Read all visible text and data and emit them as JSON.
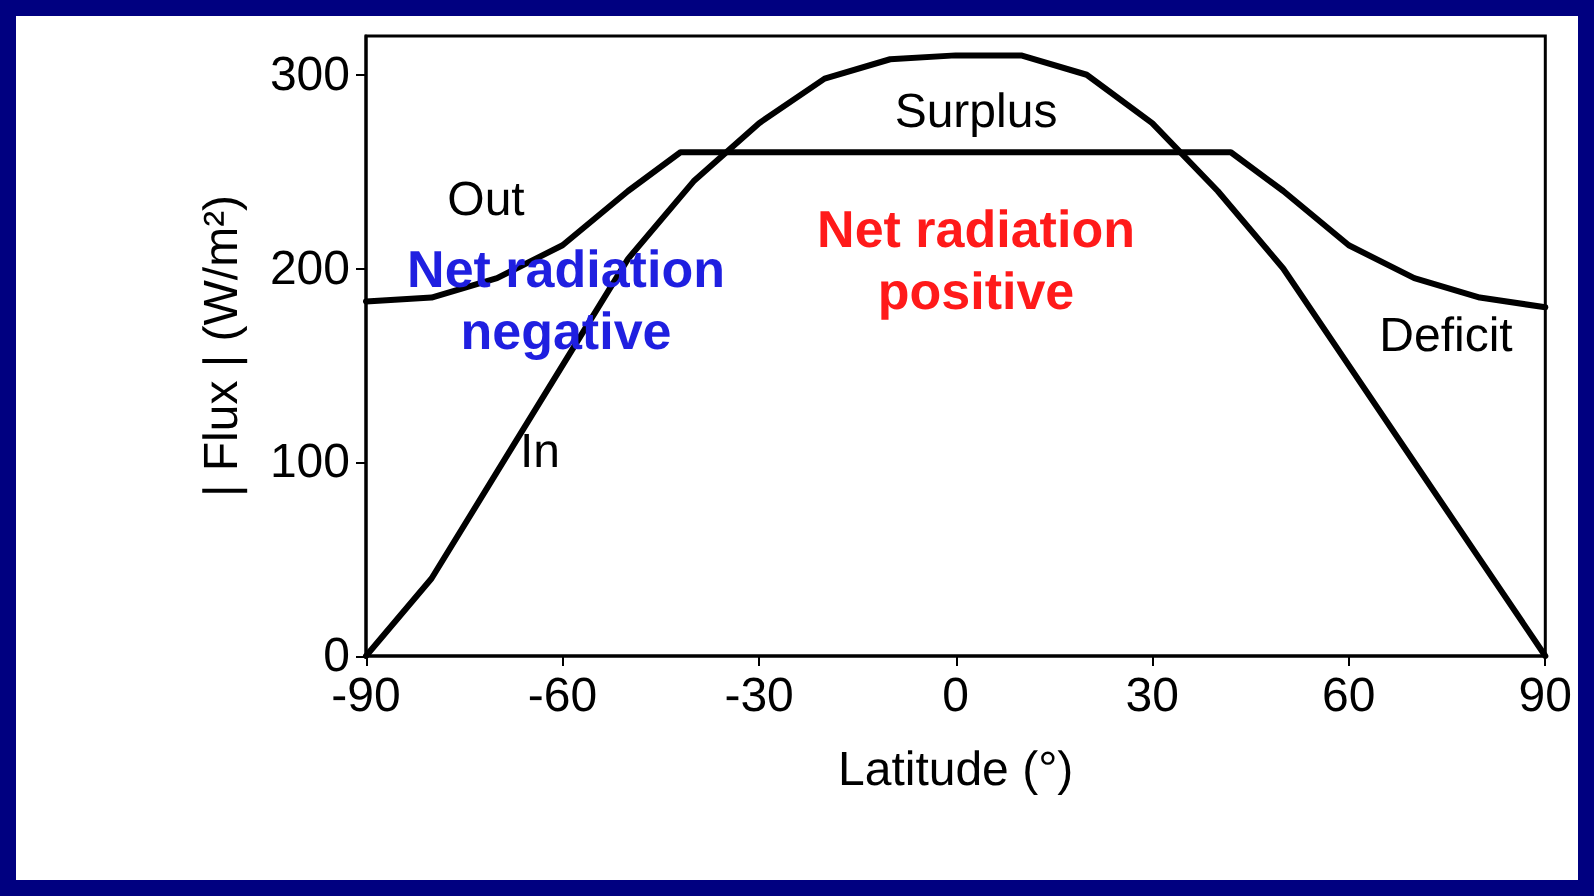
{
  "chart_data": {
    "type": "line",
    "xlabel": "Latitude (°)",
    "ylabel": "| Flux | (W/m²)",
    "xlim": [
      -90,
      90
    ],
    "xticks": [
      -90,
      -60,
      -30,
      0,
      30,
      60,
      90
    ],
    "ylim": [
      0,
      320
    ],
    "yticks": [
      0,
      100,
      200,
      300
    ],
    "grid": false,
    "marker": "none",
    "line_style": "solid",
    "series": [
      {
        "color": "#000000",
        "x": [
          -90,
          -80,
          -70,
          -60,
          -50,
          -40,
          -30,
          -20,
          -10,
          0,
          10,
          20,
          30,
          40,
          50,
          60,
          70,
          80,
          90
        ],
        "values": [
          0,
          40,
          95,
          150,
          205,
          245,
          275,
          298,
          308,
          310,
          310,
          300,
          275,
          240,
          200,
          150,
          100,
          50,
          0
        ]
      },
      {
        "color": "#000000",
        "x": [
          -90,
          -80,
          -70,
          -60,
          -50,
          -42,
          42,
          50,
          60,
          70,
          80,
          90
        ],
        "values": [
          183,
          185,
          195,
          212,
          240,
          260,
          260,
          240,
          212,
          195,
          185,
          180
        ]
      }
    ],
    "annotations": [
      "Net radiation\nnegative",
      "Net radiation\npositive",
      "Out",
      "In",
      "Surplus",
      "Deficit"
    ]
  }
}
